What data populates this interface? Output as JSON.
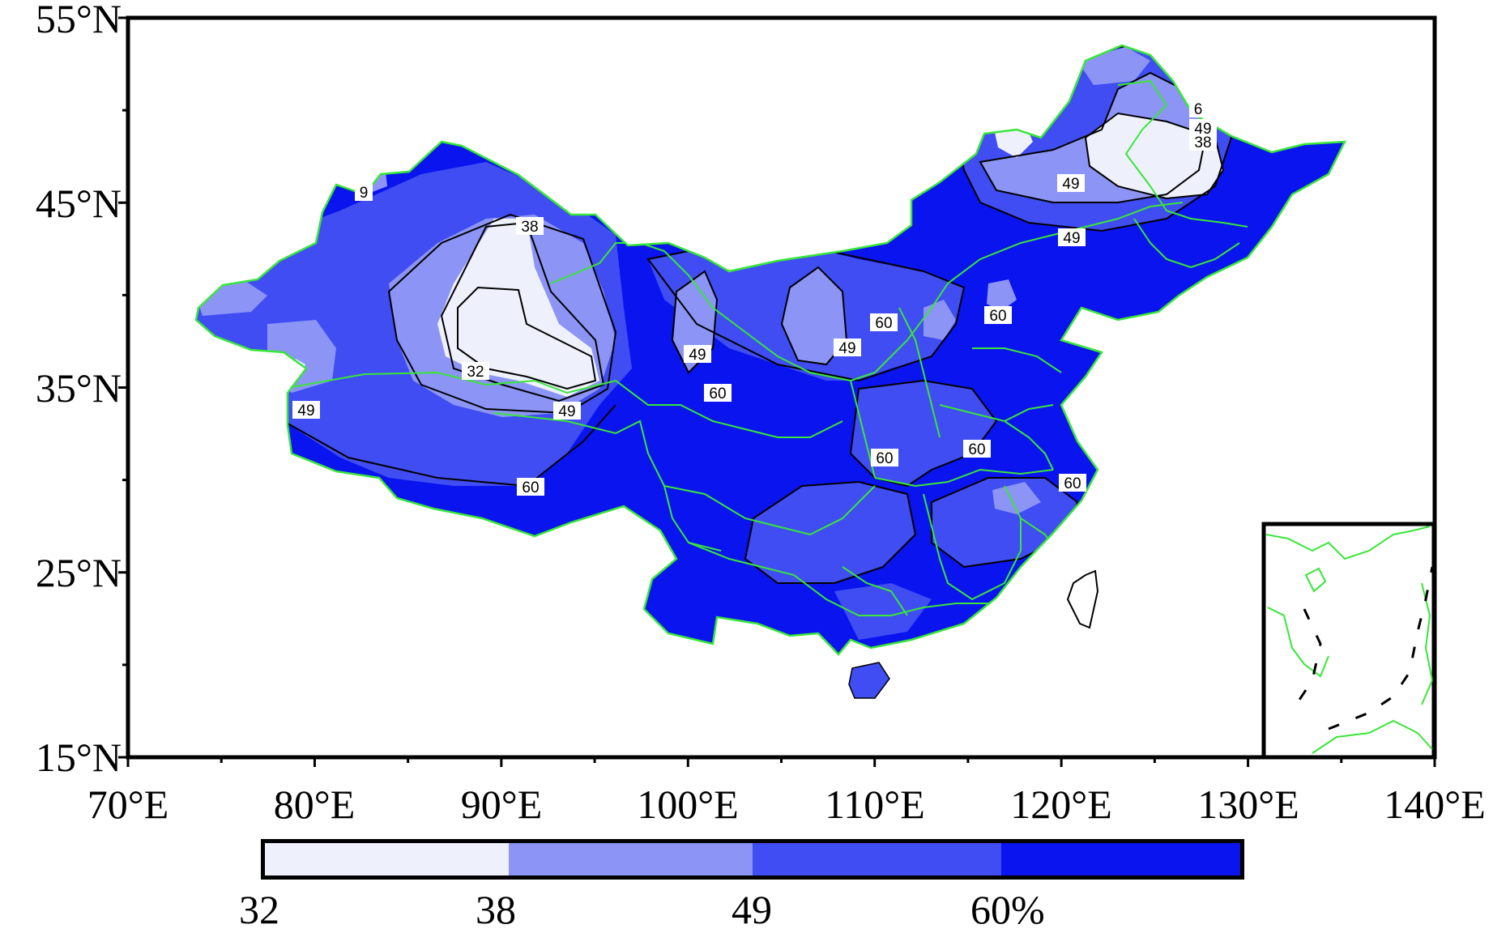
{
  "axes": {
    "lat_labels": [
      "55°N",
      "45°N",
      "35°N",
      "25°N",
      "15°N"
    ],
    "lon_labels": [
      "70°E",
      "80°E",
      "90°E",
      "100°E",
      "110°E",
      "120°E",
      "130°E",
      "140°E"
    ],
    "lat_range": [
      15,
      55
    ],
    "lon_range": [
      70,
      140
    ]
  },
  "contour_labels": [
    "9",
    "38",
    "32",
    "49",
    "49",
    "49",
    "60",
    "49",
    "60",
    "49",
    "60",
    "60",
    "60",
    "60",
    "49",
    "60",
    "49",
    "38",
    "6"
  ],
  "legend": {
    "labels": [
      "32",
      "38",
      "49",
      "60%"
    ],
    "colors": [
      "#eef1fc",
      "#8c95f5",
      "#3f4df2",
      "#0a14ee"
    ]
  },
  "colors": {
    "class_lt38": "#eef1fc",
    "class_38_49": "#8c95f5",
    "class_49_60": "#3f4df2",
    "class_gt60": "#0a14ee",
    "boundary": "#39e639"
  }
}
